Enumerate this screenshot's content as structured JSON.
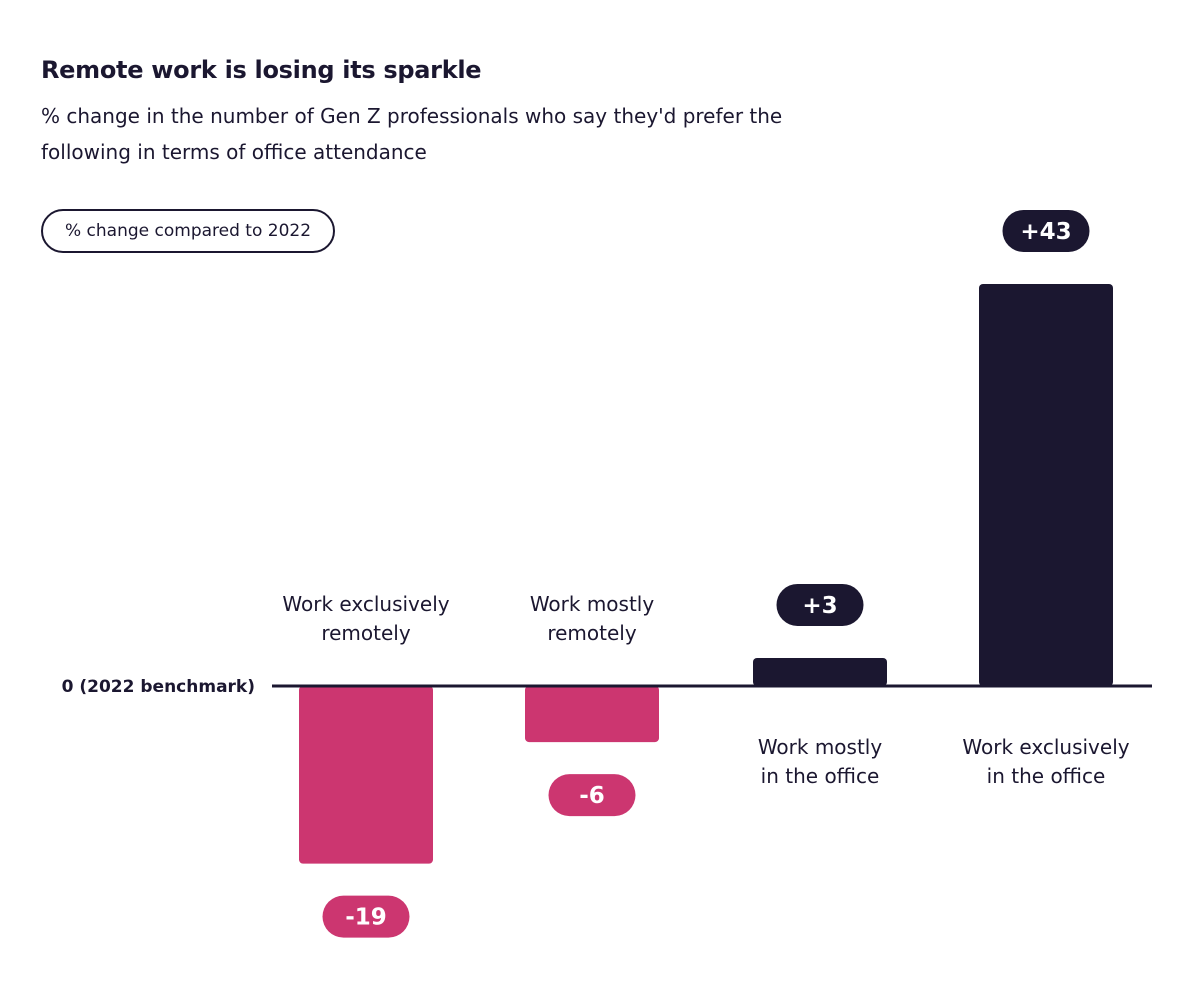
{
  "chart_data": {
    "type": "bar",
    "title": "Remote work is losing its sparkle",
    "subtitle": "% change in the number of Gen Z professionals who say they'd prefer the following in terms of office attendance",
    "legend_label": "% change compared to 2022",
    "baseline_label": "0 (2022 benchmark)",
    "categories": [
      [
        "Work exclusively",
        "remotely"
      ],
      [
        "Work mostly",
        "remotely"
      ],
      [
        "Work mostly",
        "in the office"
      ],
      [
        "Work exclusively",
        "in the office"
      ]
    ],
    "values": [
      -19,
      -6,
      3,
      43
    ],
    "data_labels": [
      "-19",
      "-6",
      "+3",
      "+43"
    ],
    "colors": {
      "negative": "#CC3670",
      "positive": "#1B1730",
      "text": "#1B1730"
    },
    "grid": false
  }
}
